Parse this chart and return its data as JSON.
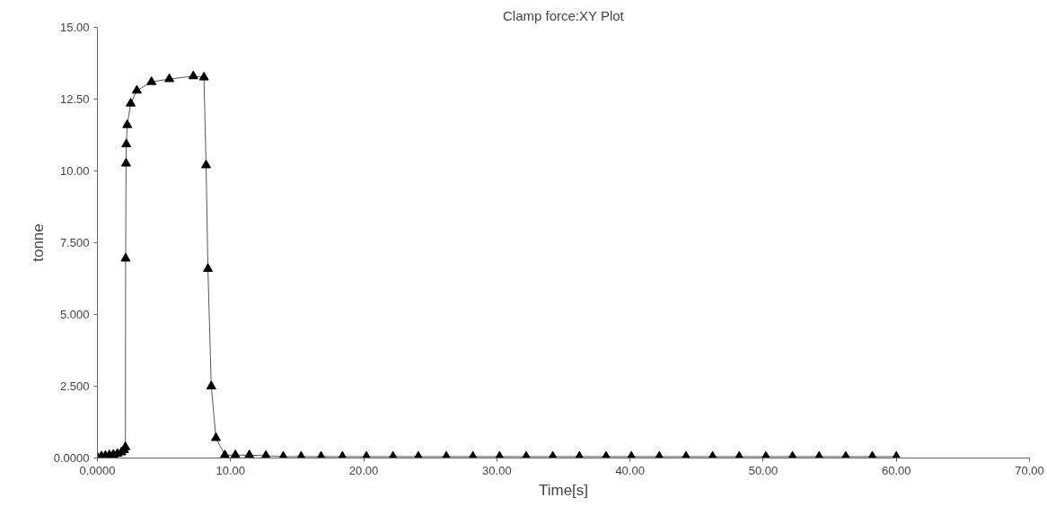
{
  "chart_data": {
    "type": "line",
    "title": "Clamp force:XY Plot",
    "xlabel": "Time[s]",
    "ylabel": "tonne",
    "x": [
      0,
      0.3,
      0.6,
      0.9,
      1.2,
      1.5,
      1.8,
      2.0,
      2.1,
      2.12,
      2.15,
      2.17,
      2.24,
      2.5,
      2.96,
      4.06,
      5.4,
      7.2,
      8.0,
      8.16,
      8.3,
      8.55,
      8.9,
      9.57,
      10.36,
      11.41,
      12.65,
      13.96,
      15.3,
      16.8,
      18.4,
      20.2,
      22.2,
      24.1,
      26.2,
      28.2,
      30.2,
      32.2,
      34.2,
      36.2,
      38.2,
      40.1,
      42.2,
      44.2,
      46.2,
      48.2,
      50.2,
      52.2,
      54.2,
      56.2,
      58.2,
      60.0
    ],
    "series": [
      {
        "color": "#000000",
        "values": [
          0.03,
          0.06,
          0.08,
          0.1,
          0.12,
          0.15,
          0.2,
          0.28,
          0.38,
          6.95,
          10.26,
          10.93,
          11.6,
          12.35,
          12.8,
          13.1,
          13.2,
          13.3,
          13.26,
          10.2,
          6.59,
          2.5,
          0.7,
          0.1,
          0.1,
          0.1,
          0.08,
          0.05,
          0.05,
          0.05,
          0.05,
          0.05,
          0.05,
          0.05,
          0.05,
          0.05,
          0.05,
          0.05,
          0.05,
          0.05,
          0.05,
          0.05,
          0.05,
          0.05,
          0.05,
          0.05,
          0.05,
          0.05,
          0.05,
          0.05,
          0.05,
          0.05
        ]
      }
    ],
    "xlim": [
      0,
      70
    ],
    "ylim": [
      0,
      15
    ],
    "xticks": [
      {
        "value": 0,
        "label": "0.0000"
      },
      {
        "value": 10,
        "label": "10.00"
      },
      {
        "value": 20,
        "label": "20.00"
      },
      {
        "value": 30,
        "label": "30.00"
      },
      {
        "value": 40,
        "label": "40.00"
      },
      {
        "value": 50,
        "label": "50.00"
      },
      {
        "value": 60,
        "label": "60.00"
      },
      {
        "value": 70,
        "label": "70.00"
      }
    ],
    "yticks": [
      {
        "value": 0,
        "label": "0.0000"
      },
      {
        "value": 2.5,
        "label": "2.500"
      },
      {
        "value": 5,
        "label": "5.000"
      },
      {
        "value": 7.5,
        "label": "7.500"
      },
      {
        "value": 10,
        "label": "10.00"
      },
      {
        "value": 12.5,
        "label": "12.50"
      },
      {
        "value": 15,
        "label": "15.00"
      }
    ],
    "grid": false,
    "marker": "triangle",
    "line_style": "solid"
  }
}
